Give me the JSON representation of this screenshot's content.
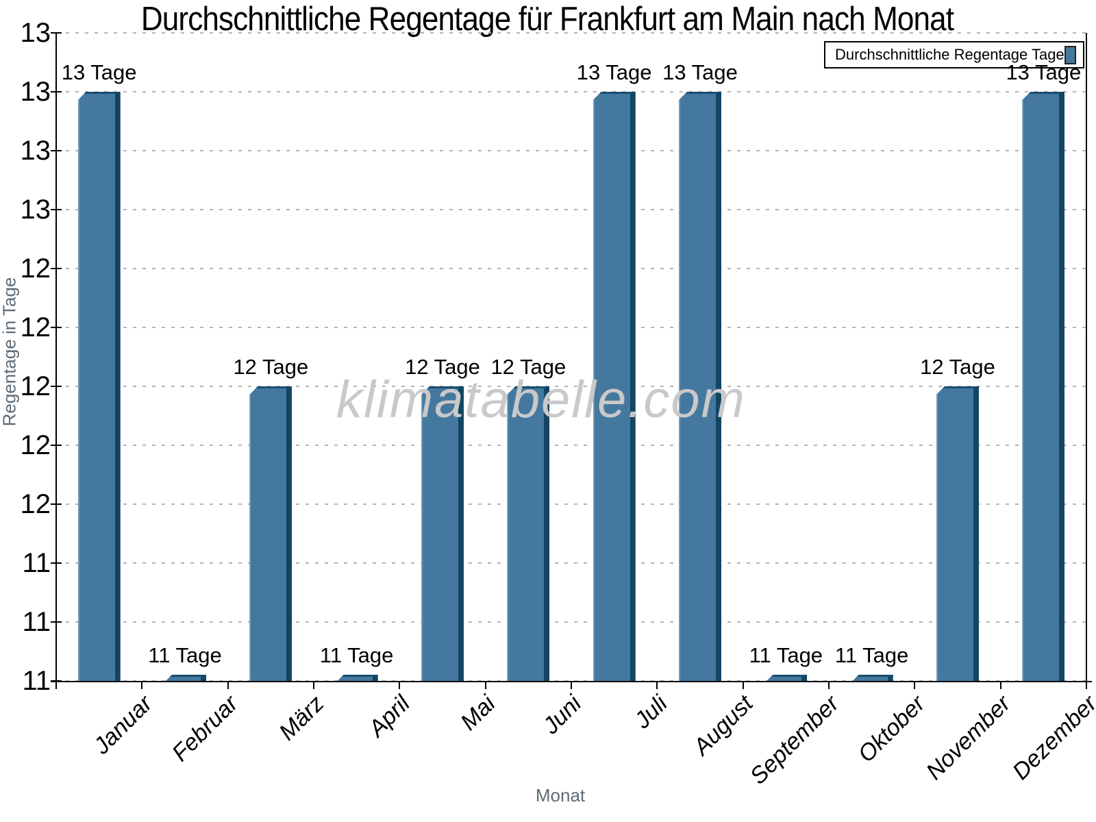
{
  "title": "Durchschnittliche Regentage für Frankfurt am Main nach Monat",
  "watermark": "klimatabelle.com",
  "legend": {
    "label": "Durchschnittliche Regentage Tage",
    "position": "top-right"
  },
  "axes": {
    "x_label": "Monat",
    "y_label": "Regentage in Tage"
  },
  "chart_data": {
    "type": "bar",
    "title": "Durchschnittliche Regentage für Frankfurt am Main nach Monat",
    "categories": [
      "Januar",
      "Februar",
      "März",
      "April",
      "Mai",
      "Juni",
      "Juli",
      "August",
      "September",
      "Oktober",
      "November",
      "Dezember"
    ],
    "values": [
      13,
      11,
      12,
      11,
      12,
      12,
      13,
      13,
      11,
      11,
      12,
      13
    ],
    "bar_labels": [
      "13 Tage",
      "11 Tage",
      "12 Tage",
      "11 Tage",
      "12 Tage",
      "12 Tage",
      "13 Tage",
      "13 Tage",
      "11 Tage",
      "11 Tage",
      "12 Tage",
      "13 Tage"
    ],
    "xlabel": "Monat",
    "ylabel": "Regentage in Tage",
    "ylim": [
      11,
      13.2
    ],
    "ytick_step": 0.2,
    "ytick_labels": [
      "13",
      "13",
      "13",
      "13",
      "12",
      "12",
      "12",
      "12",
      "12",
      "11",
      "11",
      "11"
    ],
    "grid": "dashed horizontal at every 0.2 tick",
    "legend_label": "Durchschnittliche Regentage Tage",
    "bar_color": "#45789E",
    "bar_edge_color": "#134563",
    "grid_color": "#B3B3B3",
    "axis_title_color": "#5D6B75",
    "watermark_color": "#C9C9C9"
  }
}
